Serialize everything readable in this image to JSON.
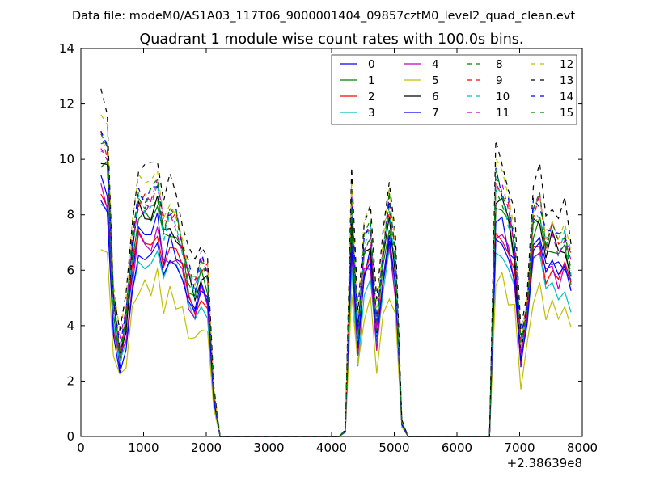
{
  "header": {
    "data_file": "Data file: modeM0/AS1A03_117T06_9000001404_09857cztM0_level2_quad_clean.evt"
  },
  "chart_data": {
    "type": "line",
    "title": "Quadrant 1 module wise count rates with 100.0s bins.",
    "xlabel": "",
    "ylabel": "",
    "x_offset_label": "+2.38639e8",
    "xlim": [
      0,
      8000
    ],
    "ylim": [
      0,
      14
    ],
    "xticks": [
      0,
      1000,
      2000,
      3000,
      4000,
      5000,
      6000,
      7000,
      8000
    ],
    "yticks": [
      0,
      2,
      4,
      6,
      8,
      10,
      12,
      14
    ],
    "grid": false,
    "legend_position": "top-right",
    "legend_columns": 4,
    "x": [
      320,
      420,
      520,
      620,
      720,
      820,
      920,
      1020,
      1120,
      1220,
      1320,
      1420,
      1520,
      1620,
      1720,
      1820,
      1920,
      2020,
      2120,
      2220,
      2320,
      2420,
      2520,
      2620,
      2720,
      2820,
      2920,
      3020,
      3120,
      3220,
      3320,
      3420,
      3520,
      3620,
      3720,
      3820,
      3920,
      4020,
      4120,
      4220,
      4320,
      4420,
      4520,
      4620,
      4720,
      4820,
      4920,
      5020,
      5120,
      5220,
      5320,
      5420,
      5520,
      5620,
      5720,
      5820,
      5920,
      6020,
      6120,
      6220,
      6320,
      6420,
      6520,
      6620,
      6720,
      6820,
      6920,
      7020,
      7120,
      7220,
      7320,
      7420,
      7520,
      7620,
      7720,
      7820
    ],
    "activity": [
      1,
      1,
      1,
      1,
      1,
      1,
      1,
      1,
      1,
      1,
      1,
      1,
      1,
      1,
      1,
      1,
      1,
      1,
      0.3,
      0,
      0,
      0,
      0,
      0,
      0,
      0,
      0,
      0,
      0,
      0,
      0,
      0,
      0,
      0,
      0,
      0,
      0,
      0,
      0,
      0.05,
      1,
      1,
      1,
      1,
      1,
      1,
      1,
      1,
      0.1,
      0,
      0,
      0,
      0,
      0,
      0,
      0,
      0,
      0,
      0,
      0,
      0,
      0,
      0,
      1,
      1,
      1,
      1,
      1,
      1,
      1,
      1,
      1,
      1,
      1,
      1,
      1
    ],
    "base_shape": [
      10.0,
      9.6,
      4.5,
      3.0,
      4.0,
      6.5,
      8.0,
      7.8,
      8.0,
      8.4,
      7.0,
      7.5,
      7.2,
      6.5,
      5.5,
      5.0,
      5.8,
      5.5,
      1.5,
      0,
      0,
      0,
      0,
      0,
      0,
      0,
      0,
      0,
      0,
      0,
      0,
      0,
      0,
      0,
      0,
      0,
      0,
      0,
      0,
      0.2,
      7.8,
      3.5,
      6.5,
      7.0,
      3.8,
      6.0,
      7.8,
      6.0,
      0.5,
      0,
      0,
      0,
      0,
      0,
      0,
      0,
      0,
      0,
      0,
      0,
      0,
      0,
      0,
      8.5,
      8.2,
      7.5,
      6.5,
      3.0,
      4.5,
      7.5,
      7.8,
      6.5,
      7.0,
      6.4,
      6.8,
      5.8
    ],
    "series": [
      {
        "name": "0",
        "color": "#0000ff",
        "dash": "solid",
        "scale": 0.93
      },
      {
        "name": "1",
        "color": "#008000",
        "dash": "solid",
        "scale": 1.0
      },
      {
        "name": "2",
        "color": "#ff0000",
        "dash": "solid",
        "scale": 0.9
      },
      {
        "name": "3",
        "color": "#00bfbf",
        "dash": "solid",
        "scale": 0.82
      },
      {
        "name": "4",
        "color": "#bf00bf",
        "dash": "solid",
        "scale": 0.88
      },
      {
        "name": "5",
        "color": "#bfbf00",
        "dash": "solid",
        "scale": 0.68
      },
      {
        "name": "6",
        "color": "#000000",
        "dash": "solid",
        "scale": 1.02
      },
      {
        "name": "7",
        "color": "#0000ff",
        "dash": "solid",
        "scale": 0.86
      },
      {
        "name": "8",
        "color": "#008000",
        "dash": "dashed",
        "scale": 1.06
      },
      {
        "name": "9",
        "color": "#ff0000",
        "dash": "dashed",
        "scale": 1.08
      },
      {
        "name": "10",
        "color": "#00bfbf",
        "dash": "dashed",
        "scale": 1.05
      },
      {
        "name": "11",
        "color": "#bf00bf",
        "dash": "dashed",
        "scale": 1.07
      },
      {
        "name": "12",
        "color": "#bfbf00",
        "dash": "dashed",
        "scale": 1.15
      },
      {
        "name": "13",
        "color": "#000000",
        "dash": "dashed",
        "scale": 1.22
      },
      {
        "name": "14",
        "color": "#0000ff",
        "dash": "dashed",
        "scale": 1.1
      },
      {
        "name": "15",
        "color": "#008000",
        "dash": "dashed",
        "scale": 1.09
      }
    ]
  }
}
